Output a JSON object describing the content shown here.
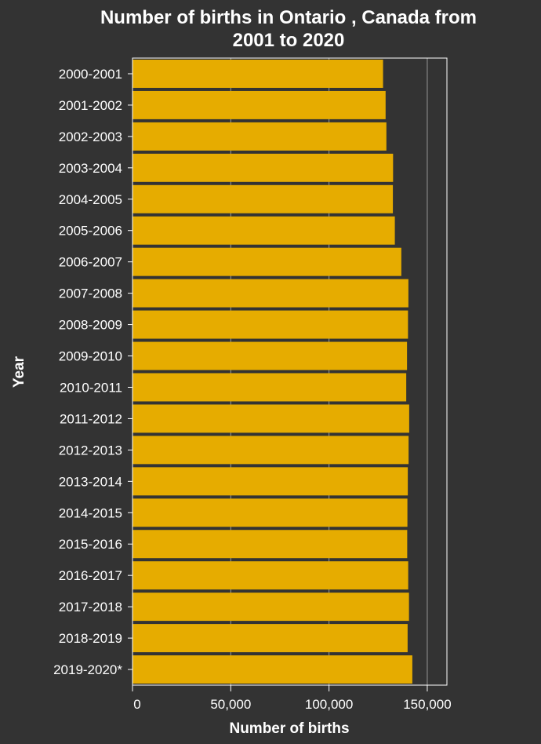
{
  "chart_data": {
    "type": "bar",
    "orientation": "horizontal",
    "title": "Number of births in Ontario , Canada from 2001 to 2020",
    "title_lines": [
      "Number of births in Ontario , Canada from",
      "2001 to 2020"
    ],
    "xlabel": "Number of births",
    "ylabel": "Year",
    "xlim": [
      0,
      160000
    ],
    "xticks": [
      0,
      50000,
      100000,
      150000
    ],
    "xtick_labels": [
      "0",
      "50,000",
      "100,000",
      "150,000"
    ],
    "grid": true,
    "categories": [
      "2000-2001",
      "2001-2002",
      "2002-2003",
      "2003-2004",
      "2004-2005",
      "2005-2006",
      "2006-2007",
      "2007-2008",
      "2008-2009",
      "2009-2010",
      "2010-2011",
      "2011-2012",
      "2012-2013",
      "2013-2014",
      "2014-2015",
      "2015-2016",
      "2016-2017",
      "2017-2018",
      "2018-2019",
      "2019-2020*"
    ],
    "values": [
      127500,
      128800,
      129200,
      132600,
      132500,
      133500,
      136800,
      140400,
      140200,
      139700,
      139300,
      140800,
      140500,
      140100,
      139900,
      139800,
      140300,
      140700,
      140000,
      142400
    ],
    "colors": {
      "background": "#333333",
      "bar": "#e6ac00",
      "grid": "#999999",
      "axis": "#ffffff",
      "text": "#ffffff"
    }
  }
}
